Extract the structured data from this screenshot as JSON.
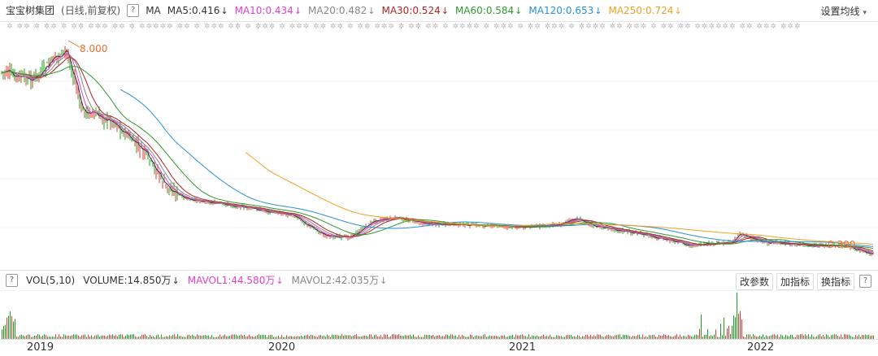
{
  "header": {
    "stock_name": "宝宝树集团",
    "mode": "(日线,前复权)",
    "help_icon": "?",
    "ma_label": "MA",
    "indicators": [
      {
        "label": "MA5:0.416",
        "arrow": "↓",
        "color": "#333333"
      },
      {
        "label": "MA10:0.434",
        "arrow": "↓",
        "color": "#e040c8"
      },
      {
        "label": "MA20:0.482",
        "arrow": "↓",
        "color": "#888888"
      },
      {
        "label": "MA30:0.524",
        "arrow": "↓",
        "color": "#b22222"
      },
      {
        "label": "MA60:0.584",
        "arrow": "↓",
        "color": "#2e9a2e"
      },
      {
        "label": "MA120:0.653",
        "arrow": "↓",
        "color": "#2a8fd8"
      },
      {
        "label": "MA250:0.724",
        "arrow": "↓",
        "color": "#f0a020"
      }
    ],
    "settings_label": "设置均线",
    "settings_caret": "▾"
  },
  "event_markers": "✲ ✲✲  ✲ ✲✲ ✲ ✲✲ ✲✲✲ ✲✲ ✲ ✲✲✲✲✲ ✲✲ ✲ ✲✲✲ ✲✲ ✲ ✲✲✲ ✲ ✲✲✲ ✲✲ ✲✲ ✲ ✲✲ ✲✲✲ ✲ ✲✲ ✲✲ ✲ ✲✲✲✲ ✲ ✲✲✲ ✲ ✲✲ ✲✲✲ ✲ ✲✲✲✲ ✲✲ ✲✲✲ ✲ ✲✲ ✲✲ ✲✲✲✲✲✲ ✲✲ ✲✲✲ ✲✲✲",
  "chart": {
    "max_label": "8.000",
    "min_label": "0.390",
    "ma_colors": [
      "#333333",
      "#e040c8",
      "#888888",
      "#b22222",
      "#2e9a2e",
      "#2a8fd8",
      "#f0a020"
    ]
  },
  "volume": {
    "help_icon": "?",
    "label": "VOL(5,10)",
    "volume_value": "VOLUME:14.850万",
    "volume_arrow": "↓",
    "mavol1": "MAVOL1:44.580万",
    "mavol1_arrow": "↓",
    "mavol1_color": "#e040c8",
    "mavol2": "MAVOL2:42.035万",
    "mavol2_arrow": "↓",
    "mavol2_color": "#888888",
    "buttons": [
      "改参数",
      "加指标",
      "换指标"
    ],
    "close_icon": "?"
  },
  "x_axis": {
    "years": [
      "2019",
      "2020",
      "2021",
      "2022"
    ]
  }
}
